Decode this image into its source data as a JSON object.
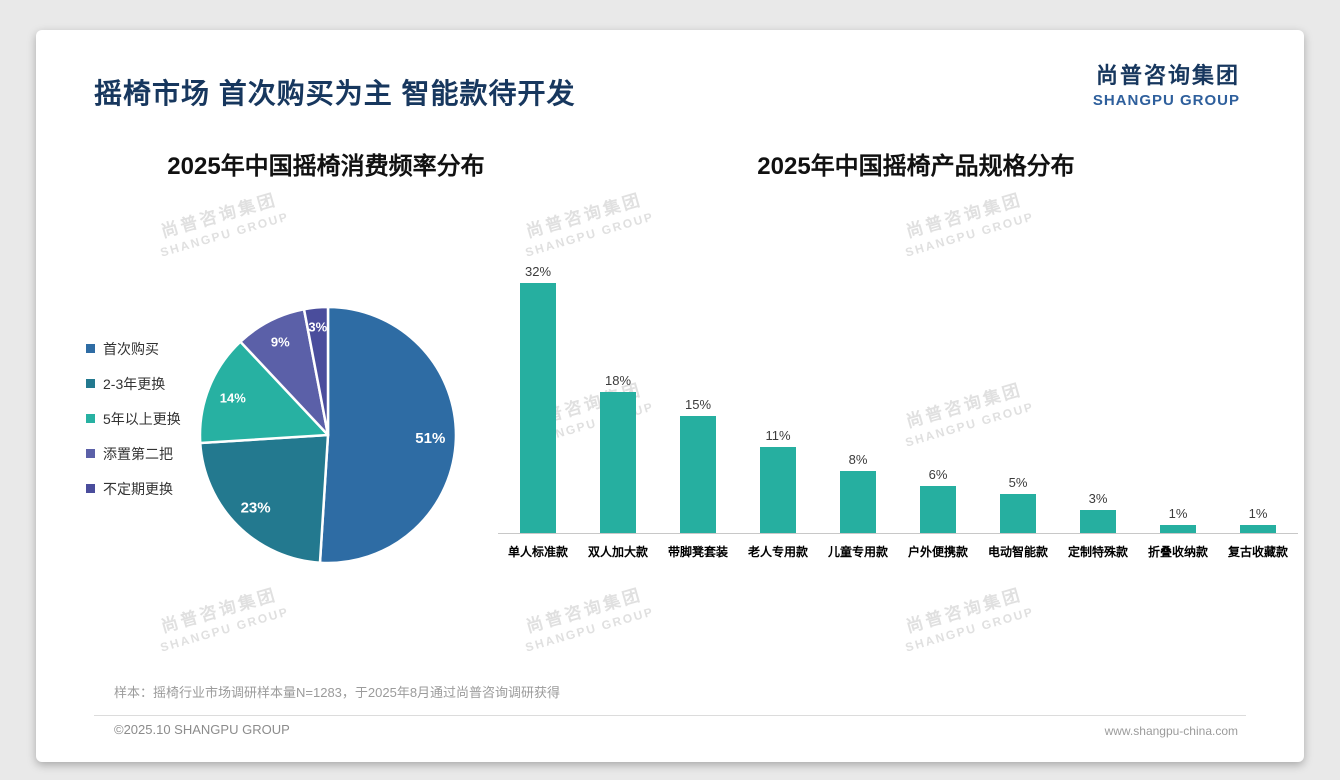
{
  "slide": {
    "title": "摇椅市场 首次购买为主 智能款待开发",
    "logo": {
      "cn": "尚普咨询集团",
      "en": "SHANGPU GROUP"
    },
    "watermark": {
      "cn": "尚普咨询集团",
      "en": "SHANGPU GROUP"
    },
    "footnote": "样本：摇椅行业市场调研样本量N=1283，于2025年8月通过尚普咨询调研获得",
    "footer_left": "©2025.10 SHANGPU GROUP",
    "footer_right": "www.shangpu-china.com"
  },
  "chart_data": [
    {
      "type": "pie",
      "title": "2025年中国摇椅消费频率分布",
      "categories": [
        "首次购买",
        "2-3年更换",
        "5年以上更换",
        "添置第二把",
        "不定期更换"
      ],
      "values": [
        51,
        23,
        14,
        9,
        3
      ],
      "unit": "%",
      "colors": [
        "#2E6CA4",
        "#23798F",
        "#27B1A2",
        "#5B60A8",
        "#4A4D9C"
      ],
      "legend_position": "left",
      "labels_inside": true
    },
    {
      "type": "bar",
      "title": "2025年中国摇椅产品规格分布",
      "categories": [
        "单人标准款",
        "双人加大款",
        "带脚凳套装",
        "老人专用款",
        "儿童专用款",
        "户外便携款",
        "电动智能款",
        "定制特殊款",
        "折叠收纳款",
        "复古收藏款"
      ],
      "values": [
        32,
        18,
        15,
        11,
        8,
        6,
        5,
        3,
        1,
        1
      ],
      "unit": "%",
      "bar_color": "#26AFA0",
      "ylim": [
        0,
        35
      ],
      "grid": false,
      "value_labels": true
    }
  ]
}
